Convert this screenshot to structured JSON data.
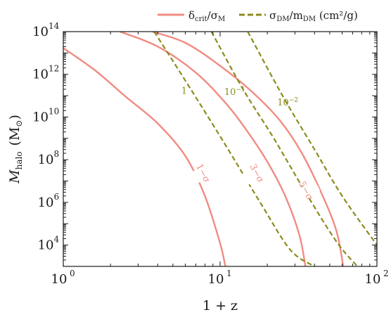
{
  "chart_data": {
    "type": "line",
    "xscale": "log",
    "yscale": "log",
    "xlim": [
      1,
      100
    ],
    "ylim": [
      1000,
      100000000000000
    ],
    "xlabel": "1 + z",
    "ylabel_main": "M",
    "ylabel_sub": "halo",
    "ylabel_unit_open": "(M",
    "ylabel_unit_sub": "⊙",
    "ylabel_unit_close": ")",
    "x_ticks": [
      {
        "base": "10",
        "exp": "0",
        "value": 1
      },
      {
        "base": "10",
        "exp": "1",
        "value": 10
      },
      {
        "base": "10",
        "exp": "2",
        "value": 100
      }
    ],
    "y_ticks": [
      {
        "base": "10",
        "exp": "4",
        "value": 10000
      },
      {
        "base": "10",
        "exp": "6",
        "value": 1000000
      },
      {
        "base": "10",
        "exp": "8",
        "value": 100000000
      },
      {
        "base": "10",
        "exp": "10",
        "value": 10000000000
      },
      {
        "base": "10",
        "exp": "12",
        "value": 1000000000000
      },
      {
        "base": "10",
        "exp": "14",
        "value": 100000000000000
      }
    ],
    "legend": {
      "placement": "top-right, above plot",
      "entries": [
        {
          "label_main": "δ",
          "label_sub": "crit",
          "label_mid": "/σ",
          "label_sub2": "M",
          "style": "solid",
          "color": "#f08c82"
        },
        {
          "label_main": "σ",
          "label_sub": "DM",
          "label_mid": "/m",
          "label_sub2": "DM",
          "label_tail": " (cm²/g)",
          "style": "dashed",
          "color": "#8c8c1e"
        }
      ]
    },
    "series": [
      {
        "name": "1-σ",
        "label": "1−σ",
        "group": "crit",
        "color": "#f08c82",
        "points": [
          [
            1.0,
            17000000000000.0
          ],
          [
            1.6,
            1500000000000.0
          ],
          [
            2.5,
            90000000000.0
          ],
          [
            4,
            5000000000.0
          ],
          [
            6,
            150000000.0
          ],
          [
            8,
            2000000.0
          ],
          [
            10,
            12000.0
          ],
          [
            10.8,
            1000
          ]
        ],
        "label_at": [
          7.5,
          20000000.0
        ]
      },
      {
        "name": "3-σ",
        "label": "3−σ",
        "group": "crit",
        "color": "#f08c82",
        "points": [
          [
            2.3,
            100000000000000.0
          ],
          [
            4,
            20000000000000.0
          ],
          [
            7,
            1200000000000.0
          ],
          [
            11,
            40000000000.0
          ],
          [
            15,
            2000000000.0
          ],
          [
            20,
            80000000.0
          ],
          [
            26,
            2000000.0
          ],
          [
            32,
            30000.0
          ],
          [
            35,
            1000
          ]
        ],
        "label_at": [
          16.5,
          20000000.0
        ]
      },
      {
        "name": "5-σ",
        "label": "5−σ",
        "group": "crit",
        "color": "#f08c82",
        "points": [
          [
            3.7,
            100000000000000.0
          ],
          [
            6,
            30000000000000.0
          ],
          [
            10,
            2500000000000.0
          ],
          [
            16,
            150000000000.0
          ],
          [
            24,
            7000000000.0
          ],
          [
            33,
            220000000.0
          ],
          [
            44,
            3000000.0
          ],
          [
            55,
            50000.0
          ],
          [
            61,
            1000
          ]
        ],
        "label_at": [
          34,
          3000000.0
        ]
      },
      {
        "name": "1",
        "label": "1",
        "group": "dm",
        "color": "#8c8c1e",
        "points": [
          [
            3.8,
            100000000000000.0
          ],
          [
            6.5,
            200000000000.0
          ],
          [
            11,
            400000000.0
          ],
          [
            18,
            1000000.0
          ],
          [
            28,
            6000.0
          ],
          [
            40,
            1000
          ]
        ],
        "label_at": [
          5.9,
          120000000000.0
        ]
      },
      {
        "name": "10^-1",
        "label_base": "10",
        "label_exp": "−1",
        "group": "dm",
        "color": "#8c8c1e",
        "points": [
          [
            8.8,
            100000000000000.0
          ],
          [
            14,
            200000000000.0
          ],
          [
            22,
            1000000000.0
          ],
          [
            35,
            3000000.0
          ],
          [
            55,
            15000.0
          ],
          [
            75,
            1000
          ]
        ],
        "label_at": [
          12.4,
          110000000000.0
        ]
      },
      {
        "name": "10^-2",
        "label_base": "10",
        "label_exp": "−2",
        "group": "dm",
        "color": "#8c8c1e",
        "points": [
          [
            15,
            100000000000000.0
          ],
          [
            25,
            100000000000.0
          ],
          [
            40,
            300000000.0
          ],
          [
            60,
            2000000.0
          ],
          [
            100,
            10000.0
          ]
        ],
        "label_at": [
          27,
          35000000000.0
        ]
      }
    ]
  }
}
